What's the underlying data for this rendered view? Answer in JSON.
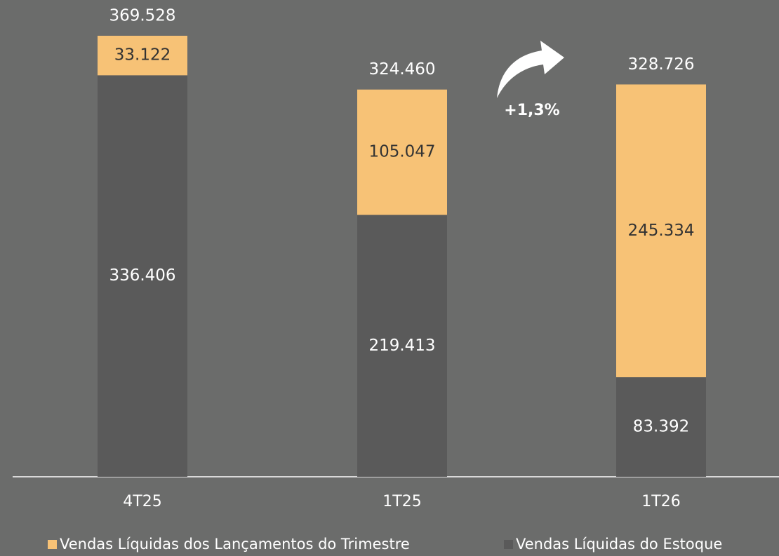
{
  "chart_data": {
    "type": "stacked_bar",
    "categories": [
      "4T25",
      "1T25",
      "1T26"
    ],
    "series": [
      {
        "name": "Vendas Líquidas do Estoque",
        "color": "#5a5a5a",
        "label_color": "#ffffff",
        "values": [
          336406,
          219413,
          83392
        ],
        "value_labels": [
          "336.406",
          "219.413",
          "83.392"
        ]
      },
      {
        "name": "Vendas Líquidas dos Lançamentos do Trimestre",
        "color": "#f7c276",
        "label_color": "#333333",
        "values": [
          33122,
          105047,
          245334
        ],
        "value_labels": [
          "33.122",
          "105.047",
          "245.334"
        ]
      }
    ],
    "totals": {
      "values": [
        369528,
        324460,
        328726
      ],
      "value_labels": [
        "369.528",
        "324.460",
        "328.726"
      ]
    },
    "annotation": "+1,3%",
    "legend": [
      "Vendas Líquidas dos Lançamentos do Trimestre",
      "Vendas Líquidas do Estoque"
    ]
  }
}
